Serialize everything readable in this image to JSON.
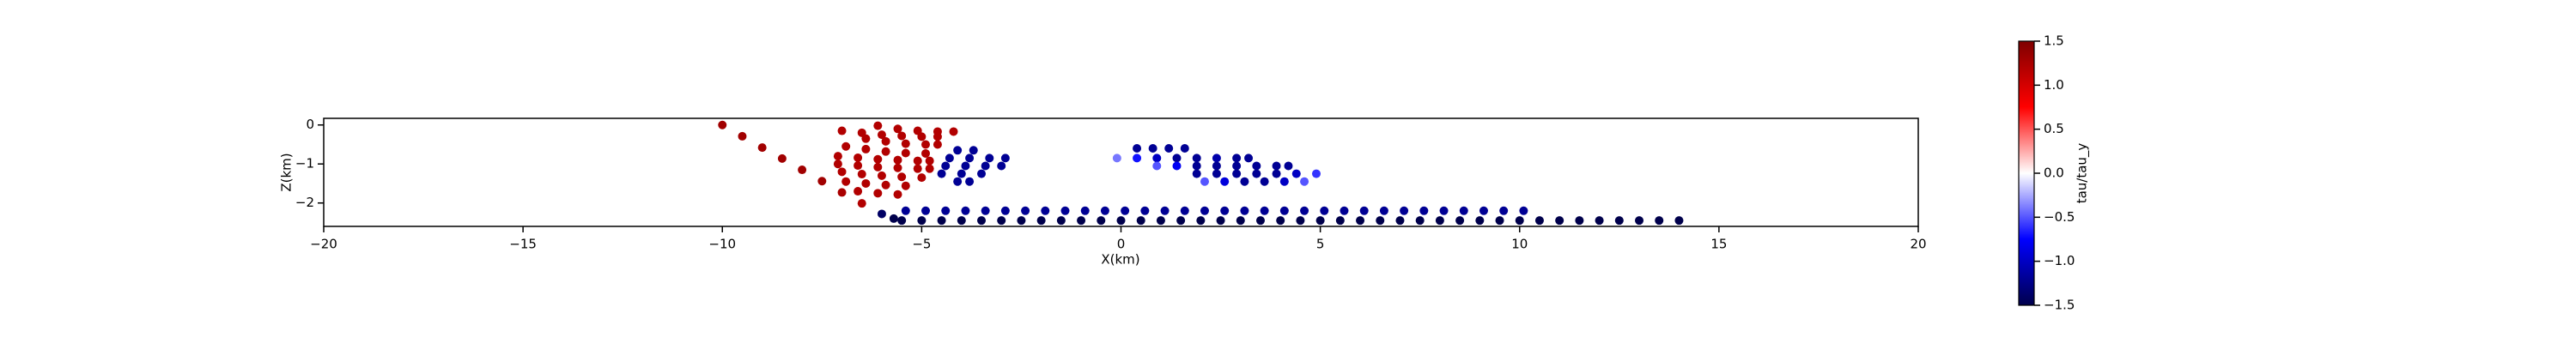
{
  "chart_data": {
    "type": "scatter",
    "xlabel": "X(km)",
    "ylabel": "Z(km)",
    "colorbar_label": "tau/tau_y",
    "xlim": [
      -20,
      20
    ],
    "ylim": [
      -2.6,
      0.17
    ],
    "xticks": [
      {
        "value": -20,
        "label": "−20"
      },
      {
        "value": -15,
        "label": "−15"
      },
      {
        "value": -10,
        "label": "−10"
      },
      {
        "value": -5,
        "label": "−5"
      },
      0,
      5,
      10,
      15,
      20
    ],
    "yticks": [
      0,
      {
        "value": -1,
        "label": "−1"
      },
      {
        "value": -2,
        "label": "−2"
      }
    ],
    "clim": [
      -1.5,
      1.5
    ],
    "cticks": [
      {
        "value": 1.5,
        "label": "1.5"
      },
      {
        "value": 1,
        "label": "1.0"
      },
      {
        "value": 0.5,
        "label": "0.5"
      },
      {
        "value": 0,
        "label": "0.0"
      },
      {
        "value": -0.5,
        "label": "−0.5"
      },
      {
        "value": -1,
        "label": "−1.0"
      },
      {
        "value": -1.5,
        "label": "−1.5"
      }
    ],
    "colormap": [
      "#00004c",
      "#0000ff",
      "#ffffff",
      "#ff0000",
      "#7f0000"
    ],
    "series": [
      {
        "x": [
          -10,
          -9.5,
          -9,
          -8.5,
          -8,
          -7.5,
          -7,
          -6.5,
          -6,
          -5.7
        ],
        "values": [
          0,
          -0.29,
          -0.58,
          -0.86,
          -1.15,
          -1.44,
          -1.73,
          -2.01,
          -2.28,
          -2.4
        ],
        "c": [
          1.3,
          1.3,
          1.3,
          1.3,
          1.3,
          1.3,
          1.25,
          1.2,
          -1.4,
          -1.5
        ]
      },
      {
        "x": [
          -5.5,
          -5,
          -4.5,
          -4,
          -3.5,
          -3,
          -2.5,
          -2,
          -1.5,
          -1,
          -0.5,
          0,
          0.5,
          1,
          1.5,
          2,
          2.5,
          3,
          3.5,
          4,
          4.5,
          5,
          5.5,
          6,
          6.5,
          7,
          7.5,
          8,
          8.5,
          9,
          9.5,
          10,
          10.5,
          11,
          11.5,
          12,
          12.5,
          13,
          13.5,
          14
        ],
        "values": [
          -2.45,
          -2.45,
          -2.45,
          -2.45,
          -2.45,
          -2.45,
          -2.45,
          -2.45,
          -2.45,
          -2.45,
          -2.45,
          -2.45,
          -2.45,
          -2.45,
          -2.45,
          -2.45,
          -2.45,
          -2.45,
          -2.45,
          -2.45,
          -2.45,
          -2.45,
          -2.45,
          -2.45,
          -2.45,
          -2.45,
          -2.45,
          -2.45,
          -2.45,
          -2.45,
          -2.45,
          -2.45,
          -2.45,
          -2.45,
          -2.45,
          -2.45,
          -2.45,
          -2.45,
          -2.45,
          -2.45
        ],
        "c": [
          -1.5,
          -1.5,
          -1.5,
          -1.5,
          -1.5,
          -1.5,
          -1.5,
          -1.5,
          -1.5,
          -1.5,
          -1.5,
          -1.5,
          -1.5,
          -1.5,
          -1.5,
          -1.5,
          -1.5,
          -1.5,
          -1.5,
          -1.5,
          -1.5,
          -1.5,
          -1.5,
          -1.5,
          -1.5,
          -1.5,
          -1.5,
          -1.5,
          -1.5,
          -1.5,
          -1.5,
          -1.5,
          -1.5,
          -1.5,
          -1.5,
          -1.5,
          -1.5,
          -1.5,
          -1.5,
          -1.5
        ]
      },
      {
        "x": [
          -5.4,
          -4.9,
          -4.4,
          -3.9,
          -3.4,
          -2.9,
          -2.4,
          -1.9,
          -1.4,
          -0.9,
          -0.4,
          0.1,
          0.6,
          1.1,
          1.6,
          2.1,
          2.6,
          3.1,
          3.6,
          4.1,
          4.6,
          5.1,
          5.6,
          6.1,
          6.6,
          7.1,
          7.6,
          8.1,
          8.6,
          9.1,
          9.6,
          10.1
        ],
        "values": [
          -2.2,
          -2.2,
          -2.2,
          -2.2,
          -2.2,
          -2.2,
          -2.2,
          -2.2,
          -2.2,
          -2.2,
          -2.2,
          -2.2,
          -2.2,
          -2.2,
          -2.2,
          -2.2,
          -2.2,
          -2.2,
          -2.2,
          -2.2,
          -2.2,
          -2.2,
          -2.2,
          -2.2,
          -2.2,
          -2.2,
          -2.2,
          -2.2,
          -2.2,
          -2.2,
          -2.2,
          -2.2
        ],
        "c": [
          -1.2,
          -1.2,
          -1.2,
          -1.2,
          -1.2,
          -1.2,
          -1.2,
          -1.2,
          -1.2,
          -1.2,
          -1.2,
          -1.2,
          -1.2,
          -1.2,
          -1.2,
          -1.2,
          -1.2,
          -1.2,
          -1.2,
          -1.2,
          -1.2,
          -1.2,
          -1.2,
          -1.2,
          -1.2,
          -1.2,
          -1.2,
          -1.2,
          -1.2,
          -1.2,
          -1.2,
          -1.2
        ]
      },
      {
        "x": [
          -6.1,
          -5.6,
          -5.1,
          -4.6,
          -4.2,
          -7,
          -6.5,
          -6,
          -5.5,
          -5,
          -4.6,
          -6.4,
          -5.9,
          -5.4,
          -4.9,
          -4.6,
          -6.9,
          -6.4,
          -5.9,
          -5.4,
          -4.9,
          -7.1,
          -6.6,
          -6.1,
          -5.6,
          -5.1,
          -4.8,
          -7.1,
          -6.6,
          -6.1,
          -5.6,
          -5.1,
          -4.8,
          -7,
          -6.5,
          -6,
          -5.5,
          -5,
          -6.9,
          -6.4,
          -5.9,
          -5.4,
          -6.6,
          -6.1,
          -5.6
        ],
        "values": [
          -0.02,
          -0.1,
          -0.15,
          -0.17,
          -0.17,
          -0.15,
          -0.2,
          -0.25,
          -0.28,
          -0.3,
          -0.3,
          -0.35,
          -0.42,
          -0.48,
          -0.5,
          -0.5,
          -0.55,
          -0.62,
          -0.68,
          -0.72,
          -0.73,
          -0.8,
          -0.84,
          -0.88,
          -0.9,
          -0.92,
          -0.92,
          -1,
          -1.04,
          -1.08,
          -1.1,
          -1.12,
          -1.12,
          -1.2,
          -1.26,
          -1.3,
          -1.33,
          -1.35,
          -1.45,
          -1.5,
          -1.54,
          -1.56,
          -1.7,
          -1.75,
          -1.78
        ],
        "c": [
          1.2,
          1.2,
          1.2,
          1.2,
          1.2,
          1.2,
          1.2,
          1.2,
          1.2,
          1.2,
          1.2,
          1.2,
          1.2,
          1.2,
          1.2,
          1.2,
          1.2,
          1.2,
          1.2,
          1.2,
          1.2,
          1.2,
          1.2,
          1.2,
          1.2,
          1.2,
          1.2,
          1.2,
          1.2,
          1.2,
          1.2,
          1.2,
          1.2,
          1.2,
          1.2,
          1.2,
          1.2,
          1.2,
          1.2,
          1.2,
          1.2,
          1.2,
          1.2,
          1.2,
          1.2
        ]
      },
      {
        "x": [
          -4.1,
          -3.7,
          -4.3,
          -3.8,
          -3.3,
          -2.9,
          -4.4,
          -3.9,
          -3.4,
          -3,
          -4.5,
          -4,
          -3.5,
          -4.1,
          -3.8
        ],
        "values": [
          -0.65,
          -0.65,
          -0.85,
          -0.85,
          -0.85,
          -0.85,
          -1.05,
          -1.05,
          -1.05,
          -1.05,
          -1.25,
          -1.25,
          -1.25,
          -1.45,
          -1.45
        ],
        "c": [
          -1.2,
          -1.2,
          -1.2,
          -1.2,
          -1.2,
          -1.2,
          -1.2,
          -1.2,
          -1.2,
          -1.2,
          -1.2,
          -1.2,
          -1.2,
          -1.2,
          -1.2
        ]
      },
      {
        "x": [
          0.4,
          0.8,
          1.2,
          1.6,
          -0.1,
          0.4,
          0.9,
          1.4,
          1.9,
          2.4,
          2.9,
          3.2,
          0.9,
          1.4,
          1.9,
          2.4,
          2.9,
          3.4,
          3.9,
          4.2,
          1.9,
          2.4,
          2.9,
          3.4,
          3.9,
          4.4,
          4.9,
          2.1,
          2.6,
          3.1,
          3.6,
          4.1,
          4.6
        ],
        "values": [
          -0.6,
          -0.6,
          -0.6,
          -0.6,
          -0.85,
          -0.85,
          -0.85,
          -0.85,
          -0.85,
          -0.85,
          -0.85,
          -0.85,
          -1.05,
          -1.05,
          -1.05,
          -1.05,
          -1.05,
          -1.05,
          -1.05,
          -1.05,
          -1.25,
          -1.25,
          -1.25,
          -1.25,
          -1.25,
          -1.25,
          -1.25,
          -1.45,
          -1.45,
          -1.45,
          -1.45,
          -1.45,
          -1.45
        ],
        "c": [
          -1.2,
          -1.2,
          -1.2,
          -1.2,
          -0.4,
          -0.7,
          -1,
          -1.2,
          -1.2,
          -1.1,
          -1.2,
          -1.2,
          -0.5,
          -0.8,
          -1.2,
          -1.2,
          -1.2,
          -1.2,
          -1.2,
          -1.2,
          -1.2,
          -1.2,
          -1.2,
          -1.2,
          -1.2,
          -1,
          -0.6,
          -0.5,
          -0.9,
          -1.2,
          -1.2,
          -1,
          -0.5
        ]
      }
    ]
  }
}
